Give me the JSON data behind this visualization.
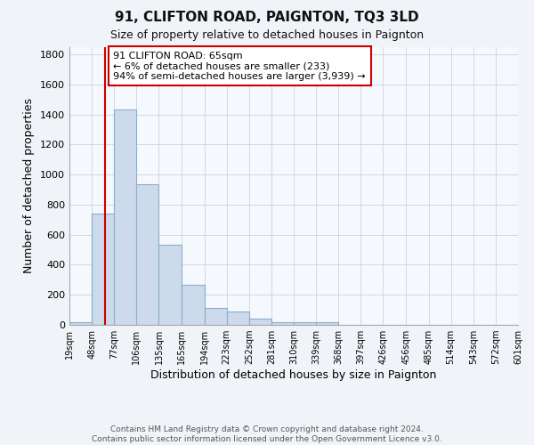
{
  "title": "91, CLIFTON ROAD, PAIGNTON, TQ3 3LD",
  "subtitle": "Size of property relative to detached houses in Paignton",
  "xlabel": "Distribution of detached houses by size in Paignton",
  "ylabel": "Number of detached properties",
  "bin_edges": [
    19,
    48,
    77,
    106,
    135,
    165,
    194,
    223,
    252,
    281,
    310,
    339,
    368,
    397,
    426,
    456,
    485,
    514,
    543,
    572,
    601
  ],
  "tick_labels": [
    "19sqm",
    "48sqm",
    "77sqm",
    "106sqm",
    "135sqm",
    "165sqm",
    "194sqm",
    "223sqm",
    "252sqm",
    "281sqm",
    "310sqm",
    "339sqm",
    "368sqm",
    "397sqm",
    "426sqm",
    "456sqm",
    "485sqm",
    "514sqm",
    "543sqm",
    "572sqm",
    "601sqm"
  ],
  "bar_heights": [
    20,
    740,
    1430,
    935,
    530,
    265,
    110,
    90,
    40,
    20,
    15,
    15,
    0,
    0,
    0,
    0,
    0,
    0,
    0,
    0
  ],
  "bar_color": "#ccdaeb",
  "bar_edge_color": "#89aecb",
  "vline_x": 65,
  "vline_color": "#cc0000",
  "annotation_text": "91 CLIFTON ROAD: 65sqm\n← 6% of detached houses are smaller (233)\n94% of semi-detached houses are larger (3,939) →",
  "annotation_box_color": "#ffffff",
  "annotation_box_edge": "#cc0000",
  "ylim": [
    0,
    1850
  ],
  "yticks": [
    0,
    200,
    400,
    600,
    800,
    1000,
    1200,
    1400,
    1600,
    1800
  ],
  "footer": "Contains HM Land Registry data © Crown copyright and database right 2024.\nContains public sector information licensed under the Open Government Licence v3.0.",
  "bg_color": "#f0f4f8",
  "plot_bg_color": "#f5f8fd",
  "grid_color": "#c8d4e4",
  "title_fontsize": 11,
  "subtitle_fontsize": 9
}
